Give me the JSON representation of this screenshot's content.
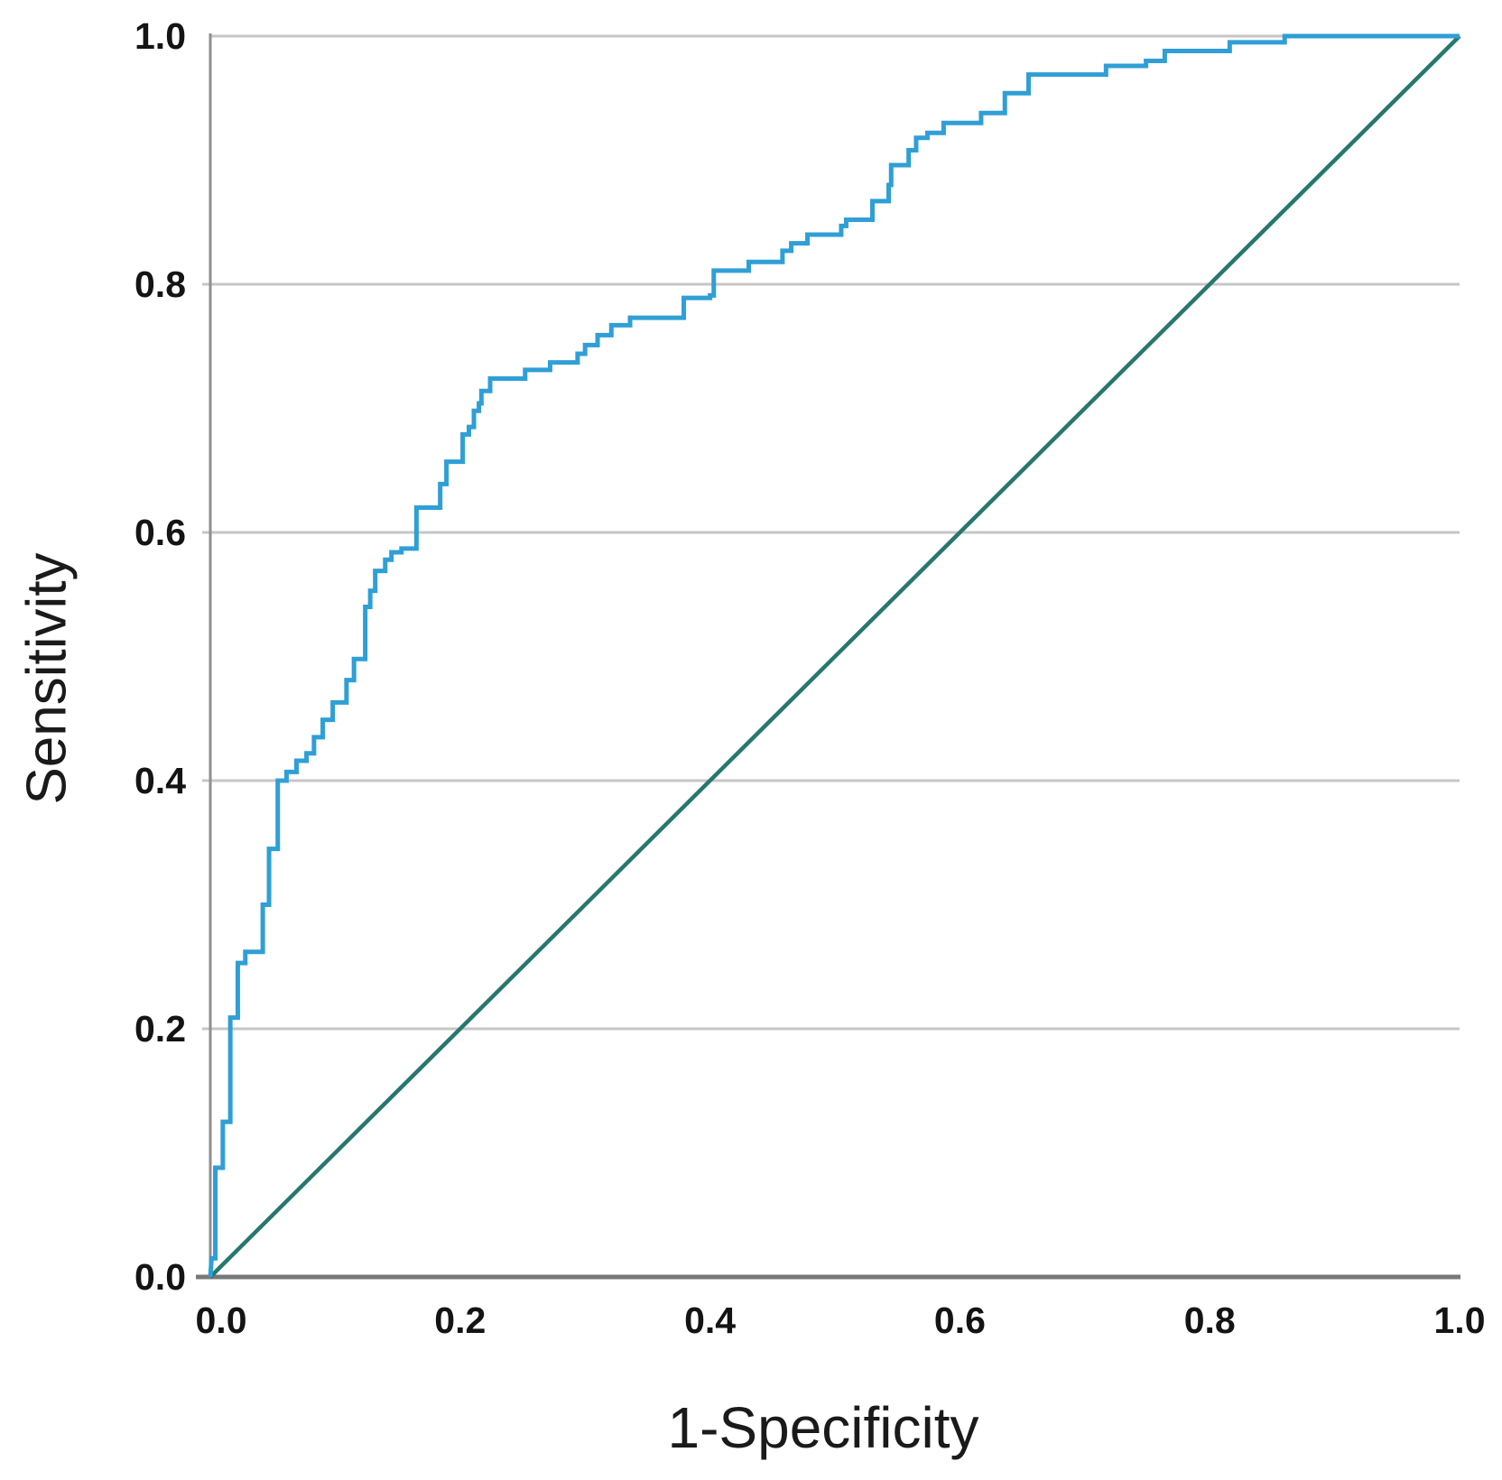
{
  "figure": {
    "background": "#ffffff"
  },
  "chart_data": {
    "type": "line",
    "subtype": "roc_curve",
    "title": "",
    "xlabel": "1-Specificity",
    "ylabel": "Sensitivity",
    "xlim": [
      0.0,
      1.0
    ],
    "ylim": [
      0.0,
      1.0
    ],
    "x_tick_labels": [
      "0.0",
      "0.2",
      "0.4",
      "0.6",
      "0.8",
      "1.0"
    ],
    "y_tick_labels": [
      "0.0",
      "0.2",
      "0.4",
      "0.6",
      "0.8",
      "1.0"
    ],
    "x_tick_values": [
      0.0,
      0.2,
      0.4,
      0.6,
      0.8,
      1.0
    ],
    "y_tick_values": [
      0.0,
      0.2,
      0.4,
      0.6,
      0.8,
      1.0
    ],
    "grid": "horizontal-only",
    "gridline_values": [
      0.2,
      0.4,
      0.6,
      0.8,
      1.0
    ],
    "legend": "none",
    "colors": {
      "roc_curve": "#2f9fd6",
      "reference_line": "#27776f",
      "gridline": "#c6c6c6",
      "y_axis_line": "#8f8f8f",
      "x_axis_line": "#787878",
      "tick_label": "#141414",
      "axis_title": "#1a1a1a"
    },
    "series": [
      {
        "name": "ROC curve",
        "color": "#2f9fd6",
        "points": [
          [
            0.0,
            0.0
          ],
          [
            0.001,
            0.015
          ],
          [
            0.004,
            0.015
          ],
          [
            0.004,
            0.088
          ],
          [
            0.01,
            0.088
          ],
          [
            0.01,
            0.125
          ],
          [
            0.016,
            0.125
          ],
          [
            0.016,
            0.209
          ],
          [
            0.022,
            0.209
          ],
          [
            0.022,
            0.253
          ],
          [
            0.028,
            0.253
          ],
          [
            0.028,
            0.262
          ],
          [
            0.042,
            0.262
          ],
          [
            0.042,
            0.3
          ],
          [
            0.047,
            0.3
          ],
          [
            0.047,
            0.345
          ],
          [
            0.054,
            0.345
          ],
          [
            0.054,
            0.4
          ],
          [
            0.061,
            0.4
          ],
          [
            0.061,
            0.407
          ],
          [
            0.069,
            0.407
          ],
          [
            0.069,
            0.416
          ],
          [
            0.077,
            0.416
          ],
          [
            0.077,
            0.422
          ],
          [
            0.083,
            0.422
          ],
          [
            0.083,
            0.435
          ],
          [
            0.09,
            0.435
          ],
          [
            0.09,
            0.449
          ],
          [
            0.098,
            0.449
          ],
          [
            0.098,
            0.463
          ],
          [
            0.109,
            0.463
          ],
          [
            0.109,
            0.481
          ],
          [
            0.115,
            0.481
          ],
          [
            0.115,
            0.498
          ],
          [
            0.124,
            0.498
          ],
          [
            0.124,
            0.54
          ],
          [
            0.128,
            0.54
          ],
          [
            0.128,
            0.553
          ],
          [
            0.132,
            0.553
          ],
          [
            0.132,
            0.569
          ],
          [
            0.14,
            0.569
          ],
          [
            0.14,
            0.578
          ],
          [
            0.145,
            0.578
          ],
          [
            0.145,
            0.584
          ],
          [
            0.153,
            0.584
          ],
          [
            0.153,
            0.587
          ],
          [
            0.165,
            0.587
          ],
          [
            0.165,
            0.62
          ],
          [
            0.184,
            0.62
          ],
          [
            0.184,
            0.639
          ],
          [
            0.189,
            0.639
          ],
          [
            0.189,
            0.657
          ],
          [
            0.202,
            0.657
          ],
          [
            0.202,
            0.679
          ],
          [
            0.207,
            0.679
          ],
          [
            0.207,
            0.685
          ],
          [
            0.211,
            0.685
          ],
          [
            0.211,
            0.698
          ],
          [
            0.215,
            0.698
          ],
          [
            0.215,
            0.704
          ],
          [
            0.217,
            0.704
          ],
          [
            0.217,
            0.714
          ],
          [
            0.224,
            0.714
          ],
          [
            0.224,
            0.724
          ],
          [
            0.252,
            0.724
          ],
          [
            0.252,
            0.731
          ],
          [
            0.272,
            0.731
          ],
          [
            0.272,
            0.737
          ],
          [
            0.294,
            0.737
          ],
          [
            0.294,
            0.744
          ],
          [
            0.3,
            0.744
          ],
          [
            0.3,
            0.751
          ],
          [
            0.31,
            0.751
          ],
          [
            0.31,
            0.759
          ],
          [
            0.321,
            0.759
          ],
          [
            0.321,
            0.767
          ],
          [
            0.336,
            0.767
          ],
          [
            0.336,
            0.773
          ],
          [
            0.379,
            0.773
          ],
          [
            0.379,
            0.789
          ],
          [
            0.4,
            0.789
          ],
          [
            0.4,
            0.791
          ],
          [
            0.403,
            0.791
          ],
          [
            0.403,
            0.811
          ],
          [
            0.431,
            0.811
          ],
          [
            0.431,
            0.818
          ],
          [
            0.458,
            0.818
          ],
          [
            0.458,
            0.827
          ],
          [
            0.465,
            0.827
          ],
          [
            0.465,
            0.833
          ],
          [
            0.478,
            0.833
          ],
          [
            0.478,
            0.84
          ],
          [
            0.505,
            0.84
          ],
          [
            0.505,
            0.847
          ],
          [
            0.509,
            0.847
          ],
          [
            0.509,
            0.852
          ],
          [
            0.53,
            0.852
          ],
          [
            0.53,
            0.867
          ],
          [
            0.543,
            0.867
          ],
          [
            0.543,
            0.88
          ],
          [
            0.545,
            0.88
          ],
          [
            0.545,
            0.896
          ],
          [
            0.559,
            0.896
          ],
          [
            0.559,
            0.908
          ],
          [
            0.565,
            0.908
          ],
          [
            0.565,
            0.918
          ],
          [
            0.574,
            0.918
          ],
          [
            0.574,
            0.922
          ],
          [
            0.587,
            0.922
          ],
          [
            0.587,
            0.93
          ],
          [
            0.617,
            0.93
          ],
          [
            0.617,
            0.938
          ],
          [
            0.636,
            0.938
          ],
          [
            0.636,
            0.954
          ],
          [
            0.655,
            0.954
          ],
          [
            0.655,
            0.969
          ],
          [
            0.717,
            0.969
          ],
          [
            0.717,
            0.976
          ],
          [
            0.749,
            0.976
          ],
          [
            0.749,
            0.98
          ],
          [
            0.764,
            0.98
          ],
          [
            0.764,
            0.988
          ],
          [
            0.816,
            0.988
          ],
          [
            0.816,
            0.995
          ],
          [
            0.86,
            0.995
          ],
          [
            0.86,
            1.0
          ],
          [
            1.0,
            1.0
          ]
        ]
      },
      {
        "name": "Reference diagonal",
        "color": "#27776f",
        "points": [
          [
            0.0,
            0.0
          ],
          [
            1.0,
            1.0
          ]
        ]
      }
    ]
  }
}
